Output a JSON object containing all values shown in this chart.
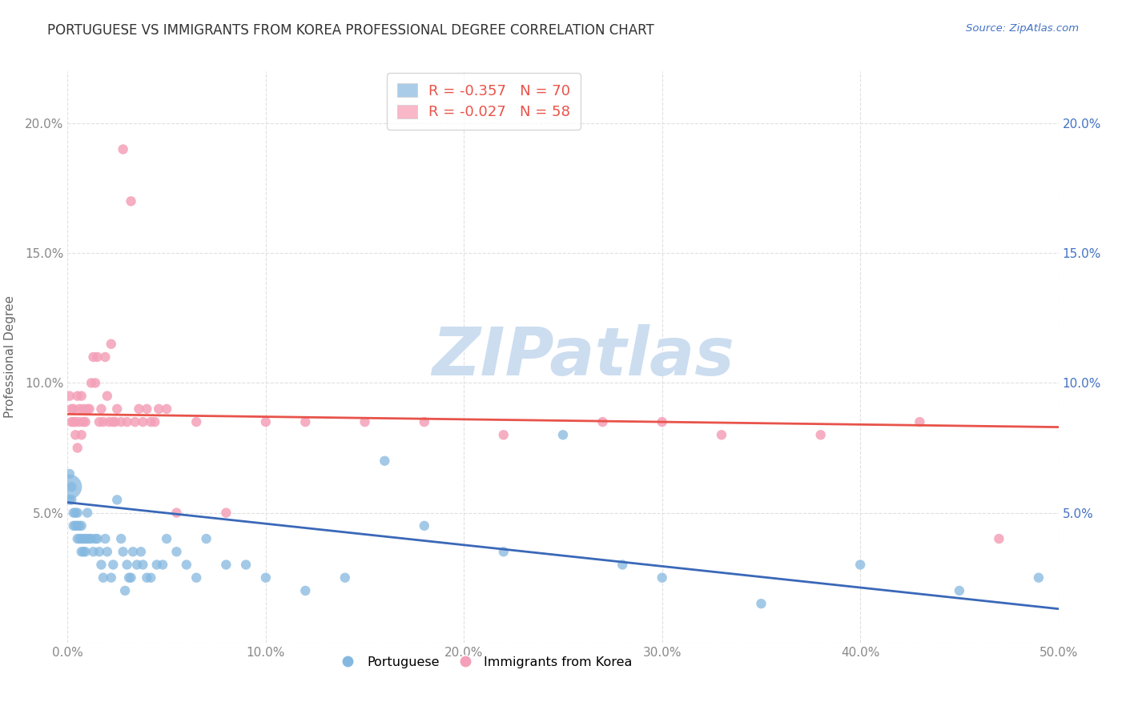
{
  "title": "PORTUGUESE VS IMMIGRANTS FROM KOREA PROFESSIONAL DEGREE CORRELATION CHART",
  "source": "Source: ZipAtlas.com",
  "ylabel": "Professional Degree",
  "xlim": [
    0.0,
    0.5
  ],
  "ylim": [
    0.0,
    0.22
  ],
  "xtick_vals": [
    0.0,
    0.1,
    0.2,
    0.3,
    0.4,
    0.5
  ],
  "xtick_labels": [
    "0.0%",
    "10.0%",
    "20.0%",
    "30.0%",
    "40.0%",
    "50.0%"
  ],
  "ytick_vals": [
    0.0,
    0.05,
    0.1,
    0.15,
    0.2
  ],
  "ytick_labels_left": [
    "",
    "5.0%",
    "10.0%",
    "15.0%",
    "20.0%"
  ],
  "ytick_labels_right": [
    "",
    "5.0%",
    "10.0%",
    "15.0%",
    "20.0%"
  ],
  "title_color": "#333333",
  "title_fontsize": 12,
  "source_color": "#4472c4",
  "axis_label_color": "#666666",
  "tick_color_left": "#888888",
  "tick_color_right": "#4472c4",
  "watermark_text": "ZIPatlas",
  "watermark_color": "#ccddf0",
  "blue_color": "#85b8e0",
  "pink_color": "#f4a0b8",
  "blue_line_color": "#3a68b8",
  "pink_line_color": "#e8534a",
  "legend_box_blue": "#aacce8",
  "legend_box_pink": "#f8b8c8",
  "legend_R_color": "#e8534a",
  "legend_N_color": "#4472c4",
  "blue_R": -0.357,
  "blue_N": 70,
  "pink_R": -0.027,
  "pink_N": 58,
  "blue_x": [
    0.001,
    0.001,
    0.001,
    0.002,
    0.002,
    0.003,
    0.003,
    0.004,
    0.004,
    0.005,
    0.005,
    0.005,
    0.006,
    0.006,
    0.007,
    0.007,
    0.007,
    0.008,
    0.008,
    0.009,
    0.009,
    0.01,
    0.01,
    0.011,
    0.012,
    0.013,
    0.014,
    0.015,
    0.016,
    0.017,
    0.018,
    0.019,
    0.02,
    0.022,
    0.023,
    0.025,
    0.027,
    0.028,
    0.029,
    0.03,
    0.031,
    0.032,
    0.033,
    0.035,
    0.037,
    0.038,
    0.04,
    0.042,
    0.045,
    0.048,
    0.05,
    0.055,
    0.06,
    0.065,
    0.07,
    0.08,
    0.09,
    0.1,
    0.12,
    0.14,
    0.16,
    0.18,
    0.22,
    0.25,
    0.28,
    0.3,
    0.35,
    0.4,
    0.45,
    0.49
  ],
  "blue_y": [
    0.06,
    0.065,
    0.055,
    0.06,
    0.055,
    0.05,
    0.045,
    0.05,
    0.045,
    0.05,
    0.045,
    0.04,
    0.045,
    0.04,
    0.045,
    0.04,
    0.035,
    0.04,
    0.035,
    0.04,
    0.035,
    0.05,
    0.04,
    0.04,
    0.04,
    0.035,
    0.04,
    0.04,
    0.035,
    0.03,
    0.025,
    0.04,
    0.035,
    0.025,
    0.03,
    0.055,
    0.04,
    0.035,
    0.02,
    0.03,
    0.025,
    0.025,
    0.035,
    0.03,
    0.035,
    0.03,
    0.025,
    0.025,
    0.03,
    0.03,
    0.04,
    0.035,
    0.03,
    0.025,
    0.04,
    0.03,
    0.03,
    0.025,
    0.02,
    0.025,
    0.07,
    0.045,
    0.035,
    0.08,
    0.03,
    0.025,
    0.015,
    0.03,
    0.02,
    0.025
  ],
  "blue_sizes": [
    500,
    80,
    80,
    80,
    80,
    80,
    80,
    80,
    80,
    80,
    80,
    80,
    80,
    80,
    80,
    80,
    80,
    80,
    80,
    80,
    80,
    80,
    80,
    80,
    80,
    80,
    80,
    80,
    80,
    80,
    80,
    80,
    80,
    80,
    80,
    80,
    80,
    80,
    80,
    80,
    80,
    80,
    80,
    80,
    80,
    80,
    80,
    80,
    80,
    80,
    80,
    80,
    80,
    80,
    80,
    80,
    80,
    80,
    80,
    80,
    80,
    80,
    80,
    80,
    80,
    80,
    80,
    80,
    80,
    80
  ],
  "pink_x": [
    0.001,
    0.002,
    0.002,
    0.003,
    0.003,
    0.004,
    0.004,
    0.005,
    0.005,
    0.006,
    0.006,
    0.007,
    0.007,
    0.008,
    0.008,
    0.009,
    0.01,
    0.011,
    0.012,
    0.013,
    0.014,
    0.015,
    0.016,
    0.017,
    0.018,
    0.019,
    0.02,
    0.021,
    0.022,
    0.023,
    0.024,
    0.025,
    0.027,
    0.028,
    0.03,
    0.032,
    0.034,
    0.036,
    0.038,
    0.04,
    0.042,
    0.044,
    0.046,
    0.05,
    0.055,
    0.065,
    0.08,
    0.1,
    0.12,
    0.15,
    0.18,
    0.22,
    0.27,
    0.3,
    0.33,
    0.38,
    0.43,
    0.47
  ],
  "pink_y": [
    0.095,
    0.085,
    0.09,
    0.085,
    0.09,
    0.08,
    0.085,
    0.095,
    0.075,
    0.09,
    0.085,
    0.095,
    0.08,
    0.085,
    0.09,
    0.085,
    0.09,
    0.09,
    0.1,
    0.11,
    0.1,
    0.11,
    0.085,
    0.09,
    0.085,
    0.11,
    0.095,
    0.085,
    0.115,
    0.085,
    0.085,
    0.09,
    0.085,
    0.19,
    0.085,
    0.17,
    0.085,
    0.09,
    0.085,
    0.09,
    0.085,
    0.085,
    0.09,
    0.09,
    0.05,
    0.085,
    0.05,
    0.085,
    0.085,
    0.085,
    0.085,
    0.08,
    0.085,
    0.085,
    0.08,
    0.08,
    0.085,
    0.04
  ],
  "pink_sizes": [
    80,
    80,
    80,
    80,
    80,
    80,
    80,
    80,
    80,
    80,
    80,
    80,
    80,
    80,
    80,
    80,
    80,
    80,
    80,
    80,
    80,
    80,
    80,
    80,
    80,
    80,
    80,
    80,
    80,
    80,
    80,
    80,
    80,
    80,
    80,
    80,
    80,
    80,
    80,
    80,
    80,
    80,
    80,
    80,
    80,
    80,
    80,
    80,
    80,
    80,
    80,
    80,
    80,
    80,
    80,
    80,
    80,
    80
  ],
  "blue_trend_x": [
    0.0,
    0.5
  ],
  "blue_trend_y": [
    0.054,
    0.013
  ],
  "pink_trend_x": [
    0.0,
    0.5
  ],
  "pink_trend_y": [
    0.088,
    0.083
  ],
  "background_color": "#ffffff",
  "grid_color": "#e0e0e0"
}
